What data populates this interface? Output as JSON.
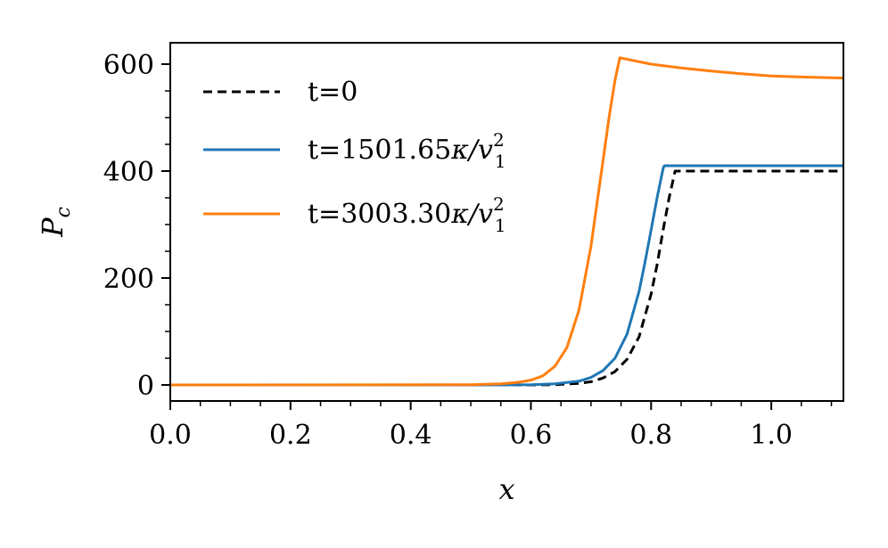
{
  "chart_data": {
    "type": "line",
    "xlabel": "x",
    "ylabel": "P",
    "ylabel_sub": "c",
    "xlim": [
      0.0,
      1.12
    ],
    "ylim": [
      -30,
      640
    ],
    "xticks": [
      0.0,
      0.2,
      0.4,
      0.6,
      0.8,
      1.0
    ],
    "xtick_labels": [
      "0.0",
      "0.2",
      "0.4",
      "0.6",
      "0.8",
      "1.0"
    ],
    "yticks": [
      0,
      200,
      400,
      600
    ],
    "ytick_labels": [
      "0",
      "200",
      "400",
      "600"
    ],
    "legend_position": "upper-left",
    "series": [
      {
        "name": "t=0",
        "color": "#000000",
        "dashed": true,
        "x": [
          0.0,
          0.55,
          0.6,
          0.64,
          0.68,
          0.7,
          0.72,
          0.74,
          0.76,
          0.78,
          0.8,
          0.81,
          0.82,
          0.83,
          0.84,
          0.9,
          1.0,
          1.12
        ],
        "y": [
          0,
          0,
          0,
          0.5,
          3,
          6,
          13,
          25,
          48,
          90,
          170,
          225,
          290,
          350,
          400,
          400,
          400,
          400
        ]
      },
      {
        "name": "t=1501.65κ/v₁²",
        "label_main": "t=1501.65",
        "label_sym": "κ/v",
        "label_sup": "2",
        "label_sub": "1",
        "color": "#1f77b4",
        "dashed": false,
        "x": [
          0.0,
          0.55,
          0.6,
          0.64,
          0.68,
          0.7,
          0.72,
          0.74,
          0.76,
          0.78,
          0.79,
          0.8,
          0.81,
          0.82,
          0.822,
          0.9,
          1.0,
          1.12
        ],
        "y": [
          0,
          0,
          0.5,
          2,
          7,
          14,
          27,
          50,
          95,
          175,
          230,
          290,
          350,
          405,
          410,
          410,
          410,
          410
        ]
      },
      {
        "name": "t=3003.30κ/v₁²",
        "label_main": "t=3003.30",
        "label_sym": "κ/v",
        "label_sup": "2",
        "label_sub": "1",
        "color": "#ff7f0e",
        "dashed": false,
        "x": [
          0.0,
          0.5,
          0.55,
          0.58,
          0.6,
          0.62,
          0.64,
          0.66,
          0.68,
          0.7,
          0.71,
          0.72,
          0.73,
          0.74,
          0.748,
          0.8,
          0.85,
          0.9,
          0.95,
          1.0,
          1.05,
          1.12
        ],
        "y": [
          0,
          0.5,
          2,
          5,
          9,
          17,
          35,
          70,
          140,
          260,
          340,
          420,
          500,
          570,
          612,
          600,
          593,
          587,
          582,
          578,
          576,
          574
        ]
      }
    ]
  }
}
